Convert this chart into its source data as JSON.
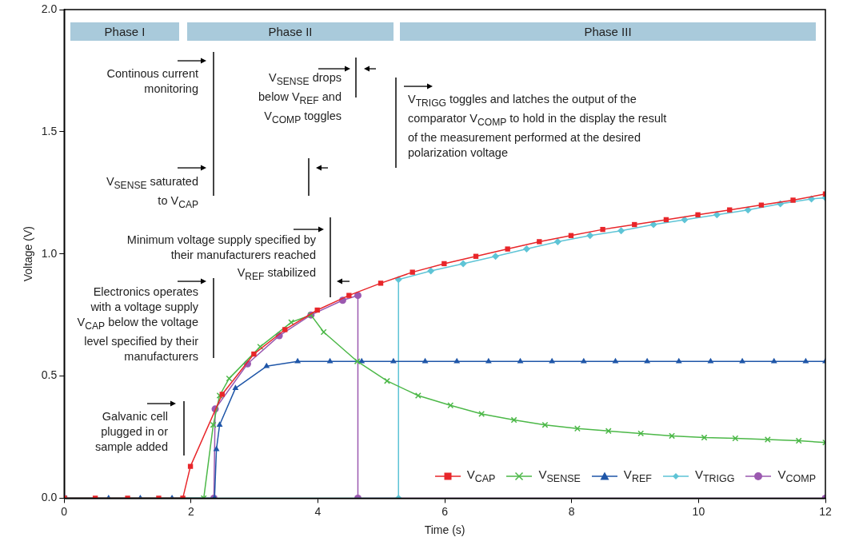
{
  "chart_data": {
    "type": "line",
    "xlabel": "Time (s)",
    "ylabel": "Voltage (V)",
    "xlim": [
      0,
      12
    ],
    "ylim": [
      0,
      2
    ],
    "xticks": [
      0,
      2,
      4,
      6,
      8,
      10,
      12
    ],
    "yticks": [
      {
        "value": 0,
        "label": "0.0"
      },
      {
        "value": 0.5,
        "label": "0.5"
      },
      {
        "value": 1,
        "label": "1.0"
      },
      {
        "value": 1.5,
        "label": "1.5"
      },
      {
        "value": 2,
        "label": "2.0"
      }
    ],
    "grid": false,
    "legend": "bottom right",
    "annotations": [
      "Phase I",
      "Phase II",
      "Phase III",
      "Continous current monitoring",
      "V$_{SENSE}$ saturated to V$_{CAP}$",
      "Electronics operates with a voltage supply V$_{CAP}$ below the voltage level specified by their manufacturers",
      "Galvanic cell plugged in or sample added",
      "Minimum voltage supply specified by their manufacturers reached",
      "V$_{REF}$ stabilized",
      "V$_{SENSE}$ drops below V$_{REF}$ and V$_{COMP}$ toggles",
      "V$_{TRIGG}$ toggles and latches the output of the comparator V$_{COMP}$ to hold in the display the result of the measurement performed at the desired polarization voltage"
    ],
    "series": [
      {
        "name": "V$_{CAP}$",
        "color": "#e8262a",
        "marker": "square",
        "x": [
          0,
          0.49,
          1.0,
          1.49,
          1.87,
          1.99,
          2.49,
          2.99,
          3.48,
          3.99,
          4.49,
          4.99,
          5.49,
          5.99,
          6.49,
          6.99,
          7.49,
          7.99,
          8.49,
          8.99,
          9.49,
          9.99,
          10.49,
          10.99,
          11.49,
          12
        ],
        "values": [
          0,
          0,
          0,
          0,
          0,
          0.13,
          0.425,
          0.59,
          0.69,
          0.77,
          0.83,
          0.88,
          0.925,
          0.96,
          0.99,
          1.02,
          1.05,
          1.075,
          1.1,
          1.12,
          1.14,
          1.16,
          1.18,
          1.2,
          1.22,
          1.245
        ]
      },
      {
        "name": "V$_{SENSE}$",
        "color": "#4cb848",
        "marker": "cross",
        "x": [
          0,
          2.2,
          2.35,
          2.45,
          2.6,
          3.09,
          3.58,
          3.89,
          4.09,
          4.62,
          5.09,
          5.58,
          6.09,
          6.58,
          7.09,
          7.58,
          8.09,
          8.58,
          9.09,
          9.58,
          10.09,
          10.58,
          11.09,
          11.58,
          12
        ],
        "values": [
          0,
          0,
          0.3,
          0.42,
          0.49,
          0.62,
          0.72,
          0.75,
          0.68,
          0.56,
          0.48,
          0.42,
          0.38,
          0.345,
          0.32,
          0.3,
          0.285,
          0.275,
          0.265,
          0.255,
          0.248,
          0.245,
          0.24,
          0.235,
          0.228
        ]
      },
      {
        "name": "V$_{REF}$",
        "color": "#1f56a8",
        "marker": "triangle",
        "x": [
          0,
          0.7,
          1.2,
          1.7,
          2.37,
          2.4,
          2.45,
          2.7,
          3.19,
          3.68,
          4.19,
          4.69,
          5.19,
          5.69,
          6.19,
          6.69,
          7.19,
          7.69,
          8.19,
          8.69,
          9.19,
          9.69,
          10.19,
          10.69,
          11.19,
          11.69,
          12
        ],
        "values": [
          0,
          0,
          0,
          0,
          0,
          0.2,
          0.3,
          0.45,
          0.54,
          0.56,
          0.56,
          0.56,
          0.56,
          0.56,
          0.56,
          0.56,
          0.56,
          0.56,
          0.56,
          0.56,
          0.56,
          0.56,
          0.56,
          0.56,
          0.56,
          0.56,
          0.56
        ]
      },
      {
        "name": "V$_{TRIGG}$",
        "color": "#5ec4d6",
        "marker": "diamond",
        "x": [
          0,
          5.27,
          5.27,
          5.78,
          6.29,
          6.8,
          7.29,
          7.78,
          8.29,
          8.78,
          9.29,
          9.78,
          10.29,
          10.78,
          11.29,
          11.78,
          12
        ],
        "values": [
          0,
          0,
          0.895,
          0.93,
          0.96,
          0.99,
          1.02,
          1.05,
          1.075,
          1.095,
          1.12,
          1.14,
          1.16,
          1.18,
          1.205,
          1.225,
          1.23
        ]
      },
      {
        "name": "V$_{COMP}$",
        "color": "#9b59b0",
        "marker": "circle",
        "x": [
          0,
          2.36,
          2.38,
          2.89,
          3.39,
          3.89,
          4.39,
          4.63,
          4.63,
          12
        ],
        "values": [
          0,
          0,
          0.365,
          0.55,
          0.665,
          0.75,
          0.81,
          0.83,
          0,
          0
        ]
      }
    ]
  }
}
